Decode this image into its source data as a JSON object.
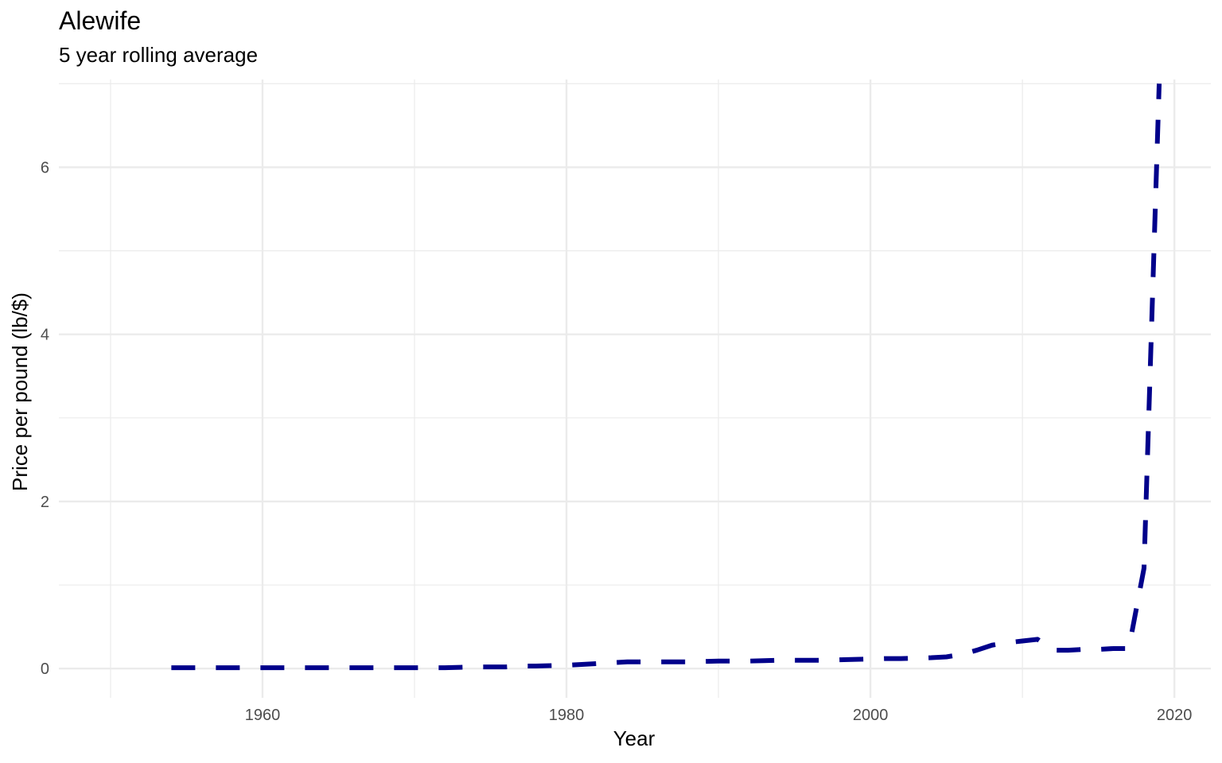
{
  "chart_data": {
    "type": "line",
    "title": "Alewife",
    "subtitle": "5 year rolling average",
    "xlabel": "Year",
    "ylabel": "Price per pound (lb/$)",
    "xlim": [
      1946.6,
      2022.4
    ],
    "ylim": [
      -0.35,
      7.05
    ],
    "x_ticks": [
      1960,
      1980,
      2000,
      2020
    ],
    "y_ticks": [
      0,
      2,
      4,
      6
    ],
    "x_minor": [
      1950,
      1970,
      1990,
      2010
    ],
    "y_minor": [
      1,
      3,
      5,
      7
    ],
    "grid": true,
    "series": [
      {
        "color": "#00008B",
        "line_style": "dashed",
        "x": [
          1954,
          1955,
          1956,
          1957,
          1958,
          1959,
          1960,
          1961,
          1962,
          1963,
          1964,
          1965,
          1966,
          1967,
          1968,
          1969,
          1970,
          1971,
          1972,
          1973,
          1974,
          1975,
          1976,
          1977,
          1978,
          1979,
          1980,
          1981,
          1982,
          1983,
          1984,
          1985,
          1986,
          1987,
          1988,
          1989,
          1990,
          1991,
          1992,
          1993,
          1994,
          1995,
          1996,
          1997,
          1998,
          1999,
          2000,
          2001,
          2002,
          2003,
          2004,
          2005,
          2006,
          2007,
          2008,
          2009,
          2010,
          2011,
          2012,
          2013,
          2014,
          2015,
          2016,
          2017,
          2018,
          2019
        ],
        "values": [
          0.01,
          0.01,
          0.01,
          0.01,
          0.01,
          0.01,
          0.01,
          0.01,
          0.01,
          0.01,
          0.01,
          0.01,
          0.01,
          0.01,
          0.01,
          0.01,
          0.01,
          0.01,
          0.01,
          0.015,
          0.02,
          0.02,
          0.02,
          0.03,
          0.03,
          0.035,
          0.04,
          0.05,
          0.06,
          0.07,
          0.08,
          0.08,
          0.08,
          0.08,
          0.08,
          0.085,
          0.09,
          0.09,
          0.09,
          0.095,
          0.1,
          0.1,
          0.1,
          0.1,
          0.105,
          0.11,
          0.115,
          0.12,
          0.12,
          0.125,
          0.13,
          0.14,
          0.17,
          0.22,
          0.28,
          0.31,
          0.33,
          0.35,
          0.22,
          0.22,
          0.23,
          0.23,
          0.24,
          0.24,
          1.2,
          7.0
        ]
      }
    ]
  }
}
